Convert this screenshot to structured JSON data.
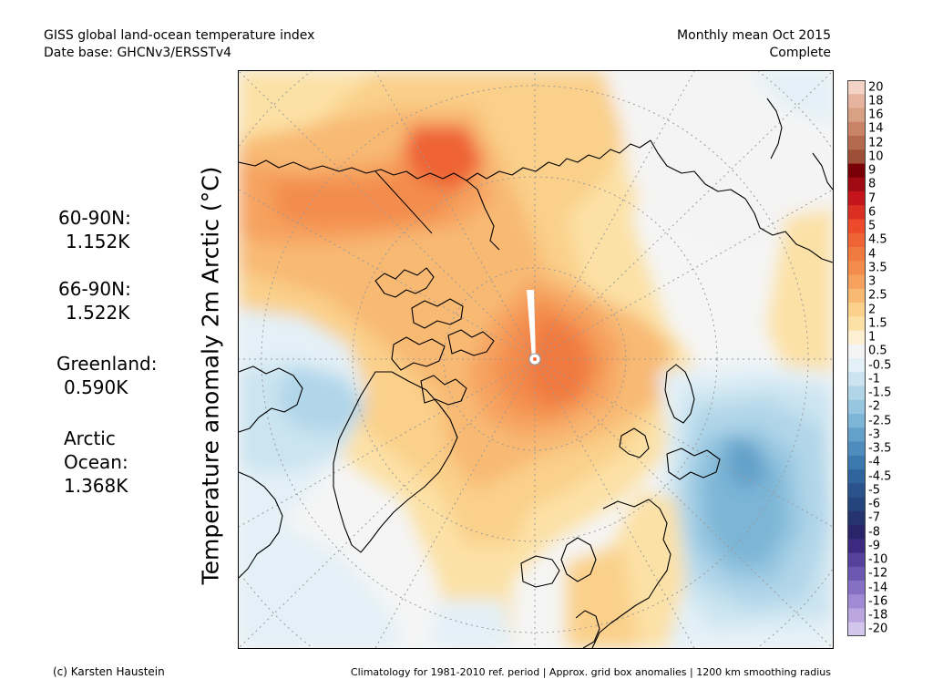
{
  "header": {
    "title": "GISS global land-ocean temperature index",
    "database": "Date base: GHCNv3/ERSSTv4",
    "period": "Monthly mean Oct 2015",
    "status": "Complete"
  },
  "stats": {
    "lat60": {
      "label": "60-90N:",
      "value": "1.152K"
    },
    "lat66": {
      "label": "66-90N:",
      "value": "1.522K"
    },
    "greenland": {
      "label": "Greenland:",
      "value": "0.590K"
    },
    "arctic_ocean": {
      "label1": "Arctic",
      "label2": "Ocean:",
      "value": "1.368K"
    }
  },
  "axis": {
    "ylabel": "Temperature anomaly 2m Arctic (°C)"
  },
  "colorbar": {
    "ticks": [
      "20",
      "18",
      "16",
      "14",
      "12",
      "10",
      "9",
      "8",
      "7",
      "6",
      "5",
      "4.5",
      "4",
      "3.5",
      "3",
      "2.5",
      "2",
      "1.5",
      "1",
      "0.5",
      "-0.5",
      "-1",
      "-1.5",
      "-2",
      "-2.5",
      "-3",
      "-3.5",
      "-4",
      "-4.5",
      "-5",
      "-6",
      "-7",
      "-8",
      "-9",
      "-10",
      "-12",
      "-14",
      "-16",
      "-18",
      "-20"
    ],
    "colors": [
      "#f2d3c6",
      "#e6b49e",
      "#d9a184",
      "#c98468",
      "#b36a4e",
      "#9c4f36",
      "#7a0008",
      "#a00a12",
      "#c4151c",
      "#dc2f24",
      "#ec4a2a",
      "#ef6434",
      "#f0793f",
      "#f38c4d",
      "#f6a25e",
      "#f8b973",
      "#fad08a",
      "#fce1a6",
      "#fdf0d2",
      "#f4f4f4",
      "#e3f0f7",
      "#cbe4f0",
      "#b1d6e9",
      "#96c6e0",
      "#7cb5d6",
      "#64a1ca",
      "#4d8cbc",
      "#3b78ad",
      "#2f649c",
      "#2a538c",
      "#24447c",
      "#25346e",
      "#2a2569",
      "#3b2a80",
      "#55409a",
      "#6c58b0",
      "#8670c3",
      "#a08ad3",
      "#bba6e0",
      "#d3c6ec"
    ]
  },
  "footer": {
    "credit": "(c) Karsten Haustein",
    "note": "Climatology for 1981-2010 ref. period | Approx. grid box anomalies | 1200 km smoothing radius"
  }
}
